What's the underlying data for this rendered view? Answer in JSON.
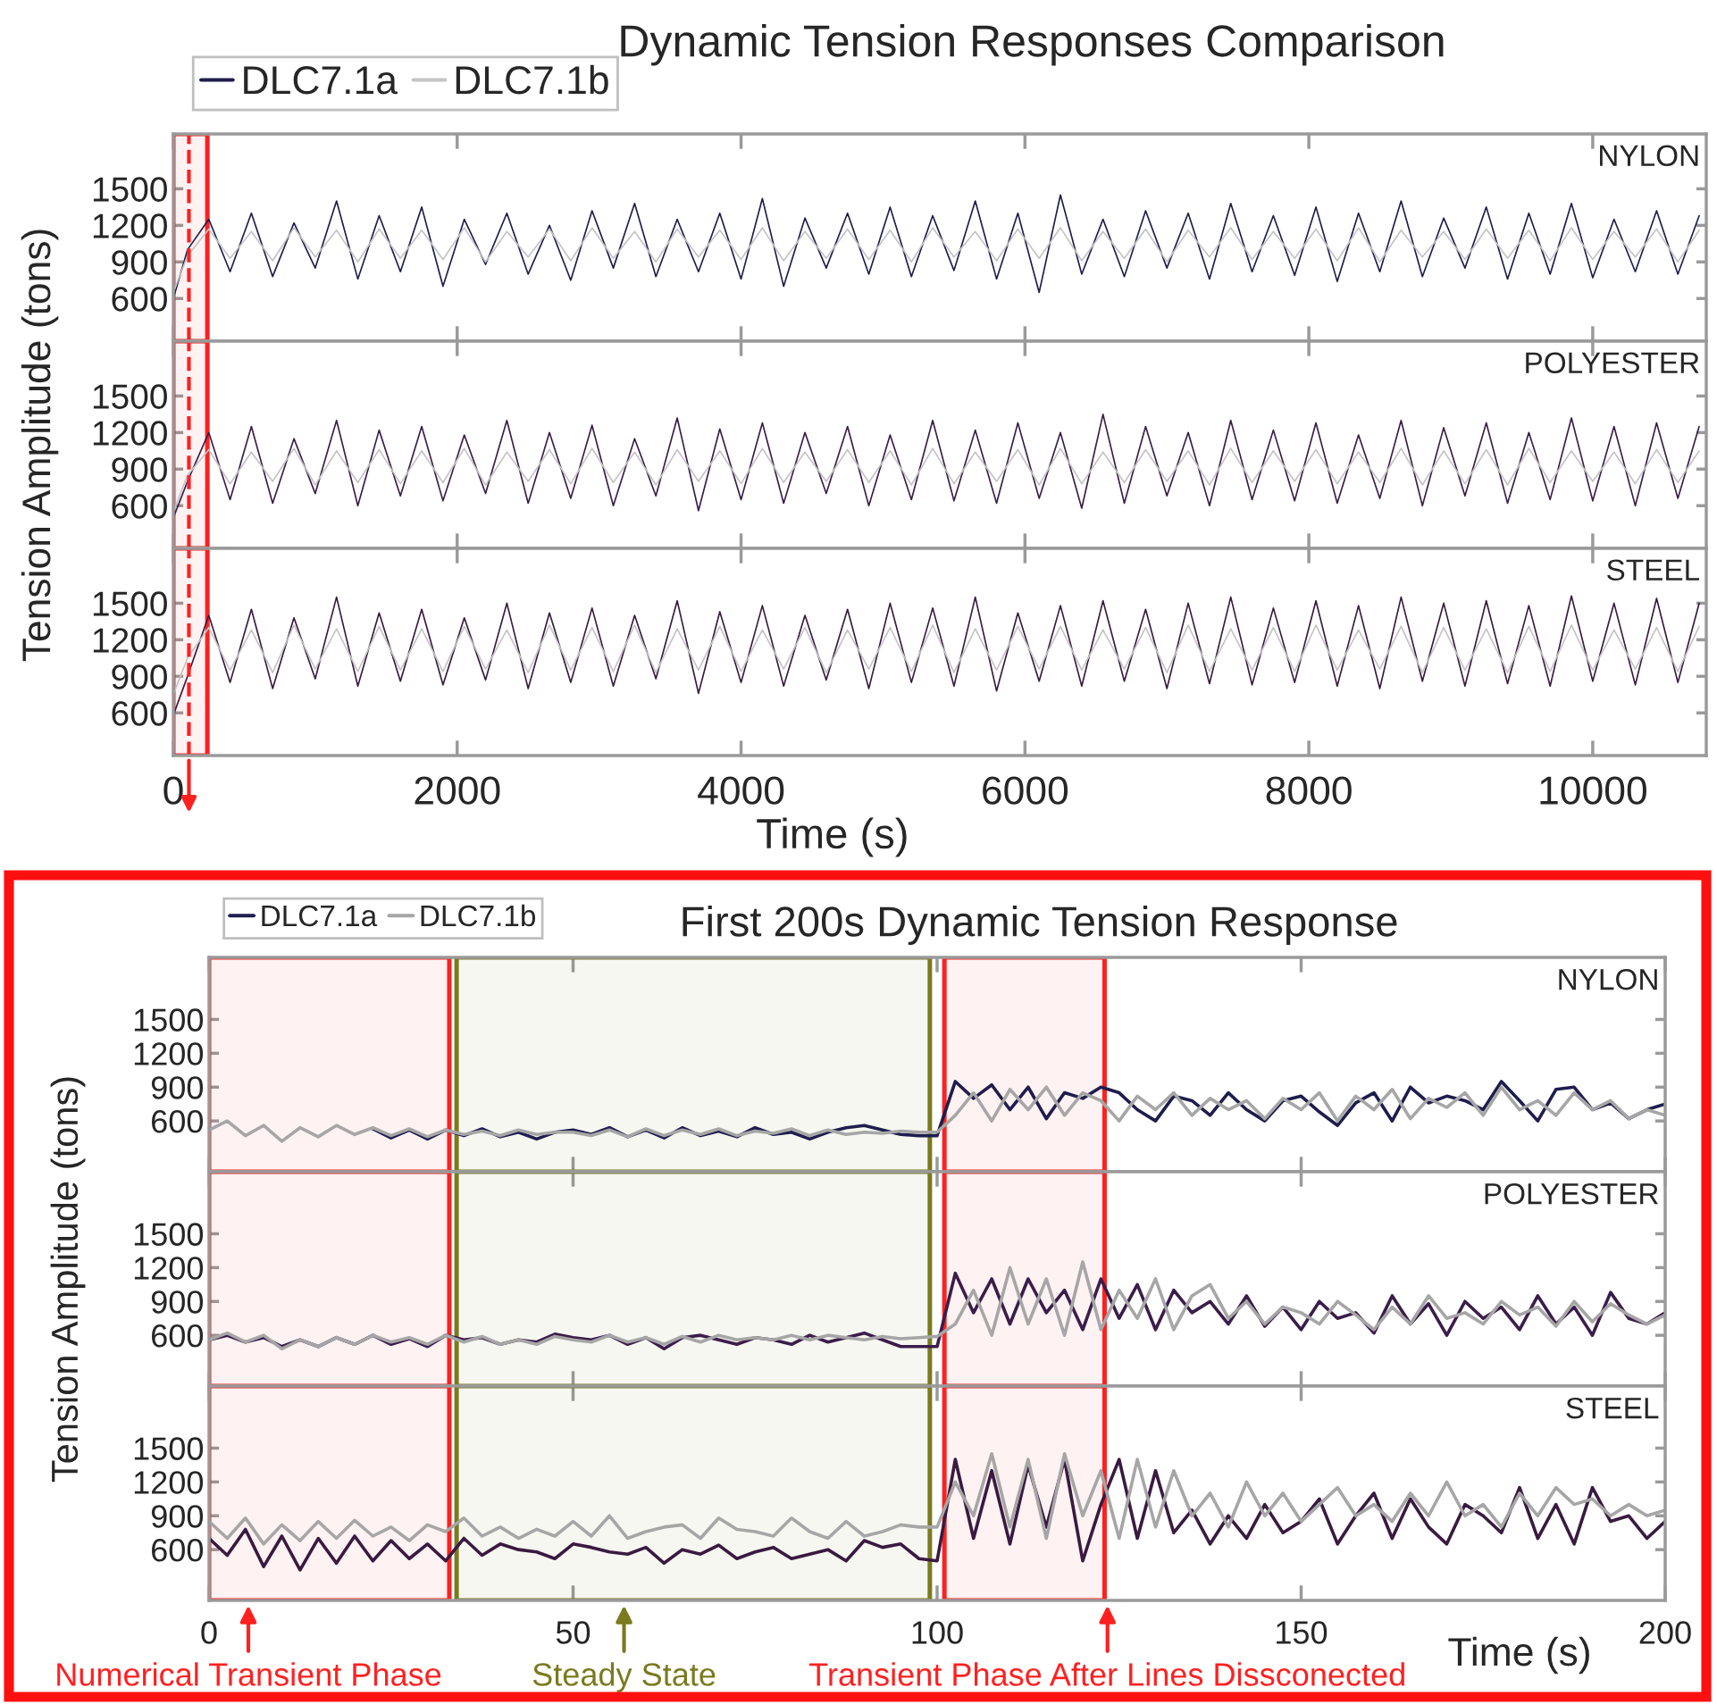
{
  "chart_data": [
    {
      "type": "line",
      "title": "Dynamic Tension Responses Comparison",
      "legend": "top left",
      "tick_labels": "y",
      "x": [
        0,
        100,
        250,
        400,
        550,
        700,
        850,
        1000,
        1150,
        1300,
        1450,
        1600,
        1750,
        1900,
        2050,
        2200,
        2350,
        2500,
        2650,
        2800,
        2950,
        3100,
        3250,
        3400,
        3550,
        3700,
        3850,
        4000,
        4150,
        4300,
        4450,
        4600,
        4750,
        4900,
        5050,
        5200,
        5350,
        5500,
        5650,
        5800,
        5950,
        6100,
        6250,
        6400,
        6550,
        6700,
        6850,
        7000,
        7150,
        7300,
        7450,
        7600,
        7750,
        7900,
        8050,
        8200,
        8350,
        8500,
        8650,
        8800,
        8950,
        9100,
        9250,
        9400,
        9550,
        9700,
        9850,
        10000,
        10150,
        10300,
        10450,
        10600,
        10750
      ],
      "series": [
        {
          "name": "DLC7.1a",
          "color": "#1f1d4d",
          "values": [
            600,
            1000,
            1250,
            820,
            1300,
            780,
            1220,
            850,
            1400,
            760,
            1280,
            820,
            1350,
            700,
            1250,
            880,
            1300,
            800,
            1200,
            750,
            1320,
            850,
            1380,
            780,
            1250,
            820,
            1300,
            760,
            1420,
            700,
            1260,
            850,
            1300,
            800,
            1350,
            780,
            1280,
            830,
            1400,
            760,
            1300,
            650,
            1450,
            800,
            1250,
            780,
            1320,
            850,
            1300,
            760,
            1380,
            820,
            1280,
            790,
            1350,
            740,
            1300,
            820,
            1400,
            780,
            1260,
            850,
            1350,
            760,
            1300,
            800,
            1380,
            770,
            1250,
            820,
            1320,
            800,
            1280
          ]
        },
        {
          "name": "DLC7.1b",
          "color": "#c4c4c4",
          "values": [
            650,
            950,
            1170,
            930,
            1150,
            910,
            1180,
            940,
            1160,
            900,
            1170,
            930,
            1160,
            920,
            1180,
            900,
            1150,
            940,
            1170,
            910,
            1180,
            930,
            1150,
            900,
            1170,
            940,
            1160,
            920,
            1180,
            910,
            1150,
            930,
            1170,
            920,
            1160,
            900,
            1180,
            940,
            1150,
            910,
            1170,
            930,
            1180,
            910,
            1150,
            930,
            1170,
            900,
            1160,
            940,
            1180,
            920,
            1150,
            930,
            1170,
            910,
            1180,
            900,
            1160,
            940,
            1150,
            920,
            1170,
            930,
            1160,
            910,
            1180,
            920,
            1150,
            940,
            1170,
            900,
            1160
          ]
        }
      ],
      "xlim": [
        0,
        10800
      ],
      "ylim": [
        250,
        1950
      ],
      "xticks": [
        0,
        2000,
        4000,
        6000,
        8000,
        10000
      ],
      "yticks": [
        600,
        900,
        1200,
        1500
      ],
      "annotations": [
        "NYLON"
      ],
      "bands": [
        {
          "axis": "x",
          "from": 0,
          "to": 240,
          "color": "#ff2020"
        }
      ],
      "ref_lines": [
        {
          "axis": "x",
          "value": 110,
          "color": "#ff2020",
          "line_style": "dashed"
        }
      ]
    },
    {
      "type": "line",
      "ylabel": "Tension Amplitude (tons)",
      "tick_labels": "y",
      "x": [
        0,
        100,
        250,
        400,
        550,
        700,
        850,
        1000,
        1150,
        1300,
        1450,
        1600,
        1750,
        1900,
        2050,
        2200,
        2350,
        2500,
        2650,
        2800,
        2950,
        3100,
        3250,
        3400,
        3550,
        3700,
        3850,
        4000,
        4150,
        4300,
        4450,
        4600,
        4750,
        4900,
        5050,
        5200,
        5350,
        5500,
        5650,
        5800,
        5950,
        6100,
        6250,
        6400,
        6550,
        6700,
        6850,
        7000,
        7150,
        7300,
        7450,
        7600,
        7750,
        7900,
        8050,
        8200,
        8350,
        8500,
        8650,
        8800,
        8950,
        9100,
        9250,
        9400,
        9550,
        9700,
        9850,
        10000,
        10150,
        10300,
        10450,
        10600,
        10750
      ],
      "series": [
        {
          "color": "#3b1d4a",
          "values": [
            500,
            800,
            1200,
            650,
            1250,
            620,
            1150,
            700,
            1300,
            600,
            1220,
            680,
            1250,
            640,
            1180,
            700,
            1300,
            620,
            1200,
            660,
            1260,
            600,
            1150,
            680,
            1320,
            560,
            1230,
            650,
            1280,
            620,
            1200,
            700,
            1250,
            600,
            1180,
            650,
            1300,
            640,
            1220,
            620,
            1280,
            660,
            1200,
            580,
            1350,
            620,
            1250,
            680,
            1200,
            600,
            1300,
            650,
            1220,
            640,
            1280,
            620,
            1180,
            660,
            1300,
            600,
            1240,
            680,
            1280,
            620,
            1200,
            650,
            1320,
            640,
            1250,
            600,
            1280,
            660,
            1250
          ]
        },
        {
          "color": "#c4c4c4",
          "values": [
            550,
            850,
            1060,
            780,
            1040,
            800,
            1070,
            770,
            1050,
            790,
            1060,
            780,
            1050,
            790,
            1070,
            770,
            1040,
            800,
            1060,
            780,
            1070,
            790,
            1040,
            770,
            1060,
            800,
            1050,
            780,
            1070,
            790,
            1040,
            800,
            1060,
            790,
            1050,
            770,
            1070,
            780,
            1040,
            800,
            1060,
            770,
            1070,
            780,
            1040,
            790,
            1060,
            800,
            1050,
            770,
            1070,
            790,
            1050,
            800,
            1060,
            780,
            1040,
            790,
            1070,
            770,
            1050,
            780,
            1060,
            770,
            1070,
            790,
            1050,
            800,
            1040,
            780,
            1060,
            790,
            1050
          ]
        }
      ],
      "xlim": [
        0,
        10800
      ],
      "ylim": [
        250,
        1950
      ],
      "xticks": [
        0,
        2000,
        4000,
        6000,
        8000,
        10000
      ],
      "yticks": [
        600,
        900,
        1200,
        1500
      ],
      "annotations": [
        "POLYESTER"
      ],
      "bands": [
        {
          "axis": "x",
          "from": 0,
          "to": 240,
          "color": "#ff2020"
        }
      ],
      "ref_lines": [
        {
          "axis": "x",
          "value": 110,
          "color": "#ff2020",
          "line_style": "dashed"
        }
      ]
    },
    {
      "type": "line",
      "xlabel": "Time (s)",
      "x": [
        0,
        100,
        250,
        400,
        550,
        700,
        850,
        1000,
        1150,
        1300,
        1450,
        1600,
        1750,
        1900,
        2050,
        2200,
        2350,
        2500,
        2650,
        2800,
        2950,
        3100,
        3250,
        3400,
        3550,
        3700,
        3850,
        4000,
        4150,
        4300,
        4450,
        4600,
        4750,
        4900,
        5050,
        5200,
        5350,
        5500,
        5650,
        5800,
        5950,
        6100,
        6250,
        6400,
        6550,
        6700,
        6850,
        7000,
        7150,
        7300,
        7450,
        7600,
        7750,
        7900,
        8050,
        8200,
        8350,
        8500,
        8650,
        8800,
        8950,
        9100,
        9250,
        9400,
        9550,
        9700,
        9850,
        10000,
        10150,
        10300,
        10450,
        10600,
        10750
      ],
      "series": [
        {
          "color": "#3a1a40",
          "values": [
            580,
            900,
            1400,
            850,
            1450,
            800,
            1380,
            880,
            1550,
            820,
            1420,
            860,
            1450,
            830,
            1380,
            870,
            1500,
            800,
            1420,
            850,
            1460,
            820,
            1400,
            880,
            1520,
            760,
            1430,
            850,
            1480,
            820,
            1400,
            870,
            1450,
            800,
            1500,
            850,
            1460,
            820,
            1550,
            780,
            1420,
            860,
            1480,
            820,
            1520,
            860,
            1450,
            800,
            1500,
            840,
            1550,
            830,
            1460,
            850,
            1520,
            820,
            1480,
            800,
            1550,
            860,
            1500,
            820,
            1520,
            840,
            1480,
            820,
            1560,
            860,
            1500,
            830,
            1540,
            850,
            1500
          ]
        },
        {
          "color": "#c4c4c4",
          "values": [
            750,
            1050,
            1300,
            950,
            1280,
            930,
            1320,
            960,
            1290,
            940,
            1310,
            950,
            1290,
            940,
            1310,
            960,
            1280,
            930,
            1320,
            950,
            1300,
            940,
            1320,
            930,
            1290,
            950,
            1310,
            940,
            1280,
            960,
            1300,
            930,
            1280,
            960,
            1300,
            940,
            1320,
            930,
            1290,
            950,
            1310,
            960,
            1310,
            950,
            1280,
            960,
            1300,
            930,
            1320,
            940,
            1290,
            950,
            1300,
            940,
            1320,
            950,
            1280,
            960,
            1310,
            930,
            1300,
            950,
            1290,
            930,
            1310,
            940,
            1320,
            950,
            1280,
            960,
            1300,
            940,
            1310
          ]
        }
      ],
      "xlim": [
        0,
        10800
      ],
      "ylim": [
        250,
        1950
      ],
      "xticks": [
        0,
        2000,
        4000,
        6000,
        8000,
        10000
      ],
      "yticks": [
        600,
        900,
        1200,
        1500
      ],
      "annotations": [
        "STEEL"
      ],
      "bands": [
        {
          "axis": "x",
          "from": 0,
          "to": 240,
          "color": "#ff2020"
        }
      ],
      "ref_lines": [
        {
          "axis": "x",
          "value": 110,
          "color": "#ff2020",
          "line_style": "dashed"
        }
      ]
    },
    {
      "type": "line",
      "title": "First 200s Dynamic Tension Response",
      "legend": "top left",
      "tick_labels": "y",
      "x": [
        0,
        2.5,
        5,
        7.5,
        10,
        12.5,
        15,
        17.5,
        20,
        22.5,
        25,
        27.5,
        30,
        32.5,
        35,
        37.5,
        40,
        42.5,
        45,
        47.5,
        50,
        52.5,
        55,
        57.5,
        60,
        62.5,
        65,
        67.5,
        70,
        72.5,
        75,
        77.5,
        80,
        82.5,
        85,
        87.5,
        90,
        92.5,
        95,
        97.5,
        100,
        102.5,
        105,
        107.5,
        110,
        112.5,
        115,
        117.5,
        120,
        122.5,
        125,
        127.5,
        130,
        132.5,
        135,
        137.5,
        140,
        142.5,
        145,
        147.5,
        150,
        152.5,
        155,
        157.5,
        160,
        162.5,
        165,
        167.5,
        170,
        172.5,
        175,
        177.5,
        180,
        182.5,
        185,
        187.5,
        190,
        192.5,
        195,
        197.5,
        200
      ],
      "series": [
        {
          "name": "DLC7.1a",
          "color": "#1f1d4d",
          "values": [
            null,
            null,
            null,
            null,
            null,
            null,
            null,
            null,
            null,
            530,
            450,
            520,
            440,
            520,
            470,
            530,
            460,
            500,
            440,
            500,
            520,
            480,
            540,
            460,
            520,
            450,
            540,
            470,
            510,
            460,
            540,
            480,
            500,
            440,
            500,
            540,
            560,
            520,
            480,
            470,
            470,
            950,
            800,
            920,
            700,
            900,
            620,
            850,
            800,
            900,
            850,
            700,
            600,
            820,
            780,
            650,
            850,
            700,
            600,
            780,
            820,
            680,
            560,
            760,
            850,
            600,
            900,
            760,
            820,
            780,
            700,
            950,
            780,
            600,
            880,
            900,
            700,
            760,
            620,
            700,
            750
          ]
        },
        {
          "name": "DLC7.1b",
          "color": "#a6a6a6",
          "values": [
            520,
            600,
            470,
            560,
            420,
            540,
            460,
            560,
            480,
            540,
            470,
            530,
            460,
            520,
            480,
            510,
            470,
            520,
            480,
            500,
            500,
            470,
            520,
            460,
            530,
            470,
            520,
            480,
            530,
            470,
            510,
            490,
            530,
            470,
            520,
            480,
            500,
            490,
            510,
            500,
            500,
            650,
            850,
            600,
            880,
            700,
            900,
            650,
            850,
            780,
            600,
            820,
            700,
            850,
            650,
            800,
            700,
            780,
            620,
            800,
            700,
            850,
            600,
            820,
            700,
            880,
            620,
            800,
            720,
            850,
            650,
            900,
            700,
            780,
            650,
            850,
            700,
            780,
            620,
            700,
            650
          ]
        }
      ],
      "xlim": [
        0,
        200
      ],
      "ylim": [
        150,
        2050
      ],
      "xticks": [
        0,
        50,
        100,
        150,
        200
      ],
      "yticks": [
        600,
        900,
        1200,
        1500
      ],
      "annotations": [
        "NYLON"
      ],
      "bands": [
        {
          "axis": "x",
          "from": 0,
          "to": 33,
          "color": "#ff2020"
        },
        {
          "axis": "x",
          "from": 34,
          "to": 99,
          "color": "#7a7a1e"
        },
        {
          "axis": "x",
          "from": 101,
          "to": 123,
          "color": "#ff2020"
        }
      ]
    },
    {
      "type": "line",
      "ylabel": "Tension Amplitude (tons)",
      "tick_labels": "y",
      "x": [
        0,
        2.5,
        5,
        7.5,
        10,
        12.5,
        15,
        17.5,
        20,
        22.5,
        25,
        27.5,
        30,
        32.5,
        35,
        37.5,
        40,
        42.5,
        45,
        47.5,
        50,
        52.5,
        55,
        57.5,
        60,
        62.5,
        65,
        67.5,
        70,
        72.5,
        75,
        77.5,
        80,
        82.5,
        85,
        87.5,
        90,
        92.5,
        95,
        97.5,
        100,
        102.5,
        105,
        107.5,
        110,
        112.5,
        115,
        117.5,
        120,
        122.5,
        125,
        127.5,
        130,
        132.5,
        135,
        137.5,
        140,
        142.5,
        145,
        147.5,
        150,
        152.5,
        155,
        157.5,
        160,
        162.5,
        165,
        167.5,
        170,
        172.5,
        175,
        177.5,
        180,
        182.5,
        185,
        187.5,
        190,
        192.5,
        195,
        197.5,
        200
      ],
      "series": [
        {
          "color": "#3b1d4a",
          "values": [
            560,
            600,
            540,
            580,
            500,
            560,
            500,
            580,
            520,
            600,
            520,
            570,
            500,
            600,
            560,
            580,
            520,
            560,
            540,
            610,
            580,
            560,
            600,
            520,
            580,
            480,
            580,
            600,
            560,
            520,
            580,
            560,
            520,
            600,
            540,
            580,
            620,
            560,
            500,
            500,
            500,
            1150,
            800,
            1100,
            700,
            1100,
            800,
            1000,
            650,
            1100,
            750,
            1050,
            650,
            1000,
            800,
            900,
            700,
            950,
            680,
            850,
            650,
            900,
            750,
            800,
            620,
            950,
            700,
            880,
            600,
            900,
            750,
            850,
            650,
            950,
            700,
            850,
            600,
            980,
            750,
            700,
            800
          ]
        },
        {
          "color": "#a6a6a6",
          "values": [
            560,
            620,
            540,
            600,
            480,
            560,
            500,
            580,
            520,
            600,
            540,
            580,
            520,
            600,
            540,
            590,
            520,
            560,
            520,
            590,
            560,
            540,
            600,
            540,
            580,
            520,
            590,
            540,
            600,
            560,
            580,
            560,
            600,
            560,
            600,
            580,
            560,
            590,
            570,
            580,
            590,
            700,
            1000,
            600,
            1200,
            700,
            1100,
            600,
            1250,
            650,
            1000,
            750,
            1100,
            650,
            950,
            1050,
            750,
            900,
            700,
            850,
            800,
            700,
            900,
            780,
            650,
            850,
            700,
            950,
            750,
            800,
            700,
            900,
            780,
            850,
            680,
            900,
            720,
            880,
            780,
            700,
            780
          ]
        }
      ],
      "xlim": [
        0,
        200
      ],
      "ylim": [
        150,
        2050
      ],
      "xticks": [
        0,
        50,
        100,
        150,
        200
      ],
      "yticks": [
        600,
        900,
        1200,
        1500
      ],
      "annotations": [
        "POLYESTER"
      ],
      "bands": [
        {
          "axis": "x",
          "from": 0,
          "to": 33,
          "color": "#ff2020"
        },
        {
          "axis": "x",
          "from": 34,
          "to": 99,
          "color": "#7a7a1e"
        },
        {
          "axis": "x",
          "from": 101,
          "to": 123,
          "color": "#ff2020"
        }
      ]
    },
    {
      "type": "line",
      "xlabel": "Time (s)",
      "x": [
        0,
        2.5,
        5,
        7.5,
        10,
        12.5,
        15,
        17.5,
        20,
        22.5,
        25,
        27.5,
        30,
        32.5,
        35,
        37.5,
        40,
        42.5,
        45,
        47.5,
        50,
        52.5,
        55,
        57.5,
        60,
        62.5,
        65,
        67.5,
        70,
        72.5,
        75,
        77.5,
        80,
        82.5,
        85,
        87.5,
        90,
        92.5,
        95,
        97.5,
        100,
        102.5,
        105,
        107.5,
        110,
        112.5,
        115,
        117.5,
        120,
        122.5,
        125,
        127.5,
        130,
        132.5,
        135,
        137.5,
        140,
        142.5,
        145,
        147.5,
        150,
        152.5,
        155,
        157.5,
        160,
        162.5,
        165,
        167.5,
        170,
        172.5,
        175,
        177.5,
        180,
        182.5,
        185,
        187.5,
        190,
        192.5,
        195,
        197.5,
        200
      ],
      "series": [
        {
          "color": "#3a1a40",
          "values": [
            700,
            550,
            780,
            450,
            720,
            420,
            700,
            480,
            720,
            500,
            680,
            520,
            650,
            500,
            700,
            550,
            650,
            600,
            580,
            520,
            650,
            620,
            580,
            560,
            620,
            480,
            600,
            560,
            640,
            520,
            580,
            620,
            520,
            560,
            600,
            500,
            680,
            620,
            650,
            520,
            500,
            1400,
            700,
            1300,
            650,
            1350,
            800,
            1400,
            500,
            1000,
            1400,
            700,
            1300,
            750,
            950,
            650,
            900,
            700,
            1000,
            750,
            850,
            1050,
            650,
            900,
            1100,
            700,
            1050,
            800,
            650,
            1000,
            900,
            750,
            1150,
            700,
            1000,
            650,
            1150,
            850,
            900,
            700,
            850
          ]
        },
        {
          "color": "#a6a6a6",
          "values": [
            850,
            700,
            880,
            650,
            820,
            680,
            850,
            700,
            860,
            720,
            800,
            680,
            820,
            760,
            880,
            720,
            800,
            700,
            780,
            720,
            850,
            720,
            900,
            700,
            760,
            800,
            820,
            700,
            880,
            780,
            760,
            720,
            880,
            760,
            700,
            850,
            720,
            760,
            820,
            800,
            800,
            1200,
            900,
            1450,
            800,
            1400,
            700,
            1450,
            900,
            1300,
            700,
            1400,
            800,
            1300,
            900,
            1100,
            800,
            1200,
            900,
            1100,
            850,
            1000,
            1150,
            900,
            1000,
            850,
            1100,
            900,
            1200,
            900,
            1000,
            800,
            1100,
            900,
            1150,
            1000,
            1050,
            900,
            1000,
            900,
            950
          ]
        }
      ],
      "xlim": [
        0,
        200
      ],
      "ylim": [
        150,
        2050
      ],
      "xticks": [
        0,
        50,
        100,
        150,
        200
      ],
      "yticks": [
        600,
        900,
        1200,
        1500
      ],
      "annotations": [
        "STEEL",
        "Numerical Transient Phase",
        "Steady State",
        "Transient Phase After Lines Dissconected"
      ],
      "bands": [
        {
          "axis": "x",
          "from": 0,
          "to": 33,
          "color": "#ff2020"
        },
        {
          "axis": "x",
          "from": 34,
          "to": 99,
          "color": "#7a7a1e"
        },
        {
          "axis": "x",
          "from": 101,
          "to": 123,
          "color": "#ff2020"
        }
      ]
    }
  ]
}
